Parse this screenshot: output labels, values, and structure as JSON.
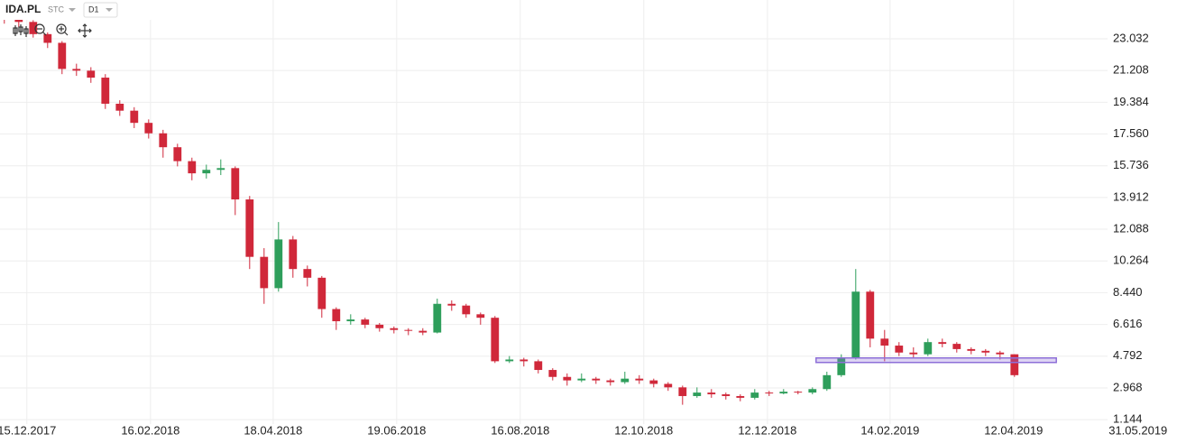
{
  "header": {
    "symbol": "IDA.PL",
    "mode": "STC",
    "timeframe": "D1"
  },
  "chart_data": {
    "type": "candlestick",
    "open": [
      24.5,
      24.2,
      24.0,
      23.3,
      22.8,
      21.3,
      21.2,
      20.8,
      19.3,
      18.9,
      18.2,
      17.6,
      16.8,
      16.0,
      15.3,
      15.5,
      15.6,
      13.8,
      10.5,
      8.7,
      11.5,
      9.8,
      9.3,
      7.5,
      6.8,
      6.9,
      6.6,
      6.4,
      6.3,
      6.25,
      6.15,
      7.8,
      7.7,
      7.2,
      7.0,
      4.5,
      4.6,
      4.5,
      4.0,
      3.6,
      3.4,
      3.5,
      3.4,
      3.3,
      3.5,
      3.4,
      3.2,
      3.0,
      2.5,
      2.7,
      2.6,
      2.5,
      2.4,
      2.7,
      2.65,
      2.75,
      2.7,
      2.9,
      3.7,
      4.7,
      8.5,
      5.8,
      5.4,
      5.0,
      4.9,
      5.6,
      5.5,
      5.2,
      5.1,
      5.0,
      4.9
    ],
    "high": [
      24.7,
      24.4,
      24.1,
      23.4,
      22.9,
      21.6,
      21.4,
      21.0,
      19.5,
      19.1,
      18.4,
      17.8,
      17.0,
      16.2,
      15.8,
      16.1,
      15.7,
      14.0,
      11.0,
      12.5,
      11.7,
      10.0,
      9.4,
      7.6,
      7.2,
      7.0,
      6.7,
      6.5,
      6.4,
      6.4,
      8.1,
      8.0,
      7.8,
      7.3,
      7.1,
      4.8,
      4.7,
      4.6,
      4.1,
      3.8,
      3.8,
      3.6,
      3.5,
      3.9,
      3.7,
      3.5,
      3.3,
      3.1,
      3.0,
      2.9,
      2.7,
      2.6,
      2.9,
      2.8,
      2.9,
      2.8,
      3.0,
      3.9,
      4.9,
      9.8,
      8.6,
      6.3,
      5.6,
      5.3,
      5.8,
      5.8,
      5.6,
      5.3,
      5.2,
      5.1,
      4.9
    ],
    "low": [
      23.9,
      23.7,
      23.1,
      22.5,
      21.0,
      20.9,
      20.5,
      19.0,
      18.6,
      17.9,
      17.3,
      16.2,
      15.7,
      14.9,
      15.0,
      15.2,
      12.9,
      9.8,
      7.8,
      8.5,
      9.3,
      8.8,
      7.0,
      6.3,
      6.6,
      6.4,
      6.2,
      6.1,
      6.0,
      6.0,
      6.1,
      7.4,
      7.0,
      6.6,
      4.4,
      4.4,
      4.2,
      3.8,
      3.4,
      3.1,
      3.3,
      3.2,
      3.1,
      3.2,
      3.2,
      3.0,
      2.8,
      2.0,
      2.4,
      2.4,
      2.3,
      2.2,
      2.3,
      2.5,
      2.6,
      2.6,
      2.6,
      2.8,
      3.6,
      4.6,
      5.3,
      4.5,
      4.8,
      4.7,
      4.8,
      5.3,
      5.0,
      4.9,
      4.8,
      4.6,
      3.6
    ],
    "close": [
      24.2,
      24.0,
      23.3,
      22.8,
      21.3,
      21.2,
      20.8,
      19.3,
      18.9,
      18.2,
      17.6,
      16.8,
      16.0,
      15.3,
      15.5,
      15.6,
      13.8,
      10.5,
      8.7,
      11.5,
      9.8,
      9.3,
      7.5,
      6.8,
      6.9,
      6.6,
      6.4,
      6.3,
      6.25,
      6.15,
      7.8,
      7.7,
      7.2,
      7.0,
      4.5,
      4.6,
      4.5,
      4.0,
      3.6,
      3.4,
      3.5,
      3.4,
      3.3,
      3.5,
      3.4,
      3.2,
      3.0,
      2.5,
      2.7,
      2.6,
      2.5,
      2.4,
      2.7,
      2.65,
      2.75,
      2.7,
      2.9,
      3.7,
      4.7,
      8.5,
      5.8,
      5.4,
      5.0,
      4.9,
      5.6,
      5.5,
      5.2,
      5.1,
      5.0,
      4.9,
      3.7
    ],
    "up_color": "#2e9e5b",
    "down_color": "#d0283a",
    "ylim": [
      0.891,
      25.261
    ],
    "yticks": [
      1.144,
      2.968,
      4.792,
      6.616,
      {
        "value": 8.44,
        "label": "8.440"
      },
      10.264,
      12.088,
      13.912,
      15.736,
      {
        "value": 17.56,
        "label": "17.560"
      },
      19.384,
      21.208,
      23.032
    ],
    "xlim": [
      -0.3,
      76.45
    ],
    "xticks": [
      {
        "value": 1.56,
        "label": "15.12.2017"
      },
      {
        "value": 10.13,
        "label": "16.02.2018"
      },
      {
        "value": 18.63,
        "label": "18.04.2018"
      },
      {
        "value": 27.19,
        "label": "19.06.2018"
      },
      {
        "value": 35.75,
        "label": "16.08.2018"
      },
      {
        "value": 44.31,
        "label": "12.10.2018"
      },
      {
        "value": 52.88,
        "label": "12.12.2018"
      },
      {
        "value": 61.38,
        "label": "14.02.2019"
      },
      {
        "value": 69.94,
        "label": "12.04.2019"
      },
      {
        "value": 78.56,
        "label": "31.05.2019"
      }
    ],
    "grid": true,
    "zone": {
      "x": [
        56.25,
        72.9
      ],
      "y": [
        4.43,
        4.69
      ],
      "color": "#8e6fd8"
    }
  }
}
